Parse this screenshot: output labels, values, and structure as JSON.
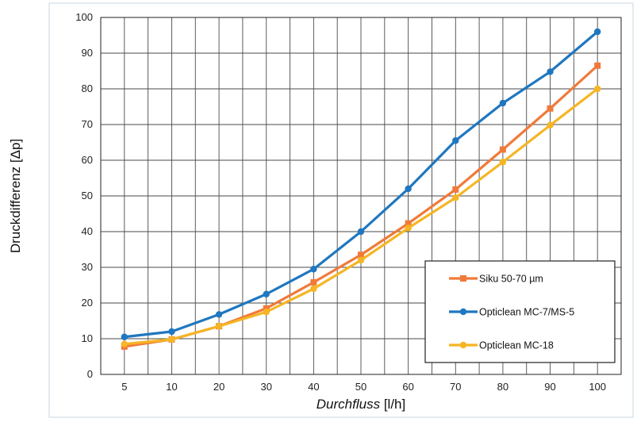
{
  "chart_data": {
    "type": "line",
    "categories": [
      "5",
      "10",
      "20",
      "30",
      "40",
      "50",
      "60",
      "70",
      "80",
      "90",
      "100"
    ],
    "ylabel": "Druckdifferenz [Δp]",
    "xlabel_italic": "Durchfluss",
    "xlabel_rest": " [l/h]",
    "ylim": [
      0,
      100
    ],
    "yticks": [
      0,
      10,
      20,
      30,
      40,
      50,
      60,
      70,
      80,
      90,
      100
    ],
    "grid": true,
    "legend_position": "bottom-right",
    "series": [
      {
        "name": "Siku 50-70 µm",
        "color": "#f07a3a",
        "marker": "square",
        "values": [
          7.8,
          9.8,
          13.5,
          18.5,
          25.8,
          33.5,
          42.3,
          51.8,
          63.0,
          74.5,
          86.5
        ]
      },
      {
        "name": "Opticlean MC-7/MS-5",
        "color": "#1f77c0",
        "marker": "circle",
        "values": [
          10.5,
          12.0,
          16.8,
          22.5,
          29.5,
          40.0,
          52.0,
          65.5,
          76.0,
          84.8,
          96.0
        ]
      },
      {
        "name": "Opticlean MC-18",
        "color": "#f5b524",
        "marker": "circle",
        "values": [
          8.5,
          9.8,
          13.5,
          17.5,
          24.0,
          32.0,
          41.0,
          49.5,
          59.5,
          69.8,
          80.0
        ]
      }
    ]
  }
}
